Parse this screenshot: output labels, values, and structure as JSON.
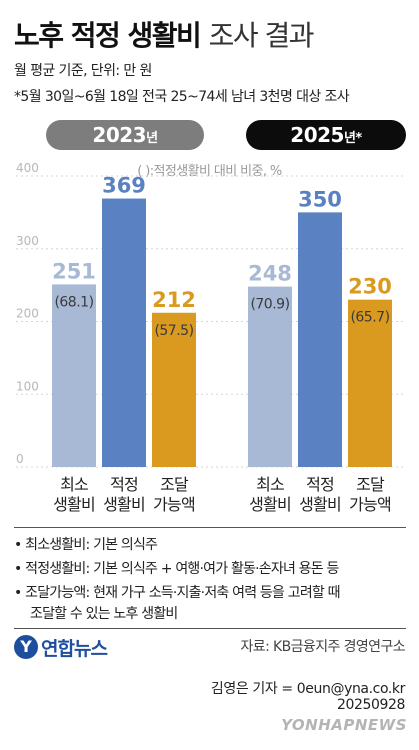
{
  "title": {
    "bold": "노후 적정 생활비",
    "light": "조사 결과"
  },
  "subtitle": "월 평균 기준, 단위: 만 원",
  "survey_note": "*5월 30일~6월 18일 전국 25~74세 남녀 3천명 대상 조사",
  "groups": [
    {
      "year": "2023",
      "suffix": "년"
    },
    {
      "year": "2025",
      "suffix": "년*"
    }
  ],
  "paren_note": "( ):적정생활비 대비 비중, %",
  "colors": {
    "min": "#a8b9d6",
    "adequate": "#5a82c2",
    "capacity": "#d99a1f",
    "axis_text": "#b8b8b8",
    "grid": "#d6d6d6"
  },
  "chart_data": {
    "type": "bar",
    "ylim": [
      0,
      400
    ],
    "yticks": [
      0,
      100,
      200,
      300,
      400
    ],
    "categories": [
      [
        "최소",
        "생활비"
      ],
      [
        "적정",
        "생활비"
      ],
      [
        "조달",
        "가능액"
      ]
    ],
    "groups": [
      {
        "label": "2023년",
        "values": [
          251,
          369,
          212
        ],
        "shares": [
          "(68.1)",
          "",
          "(57.5)"
        ]
      },
      {
        "label": "2025년",
        "values": [
          248,
          350,
          230
        ],
        "shares": [
          "(70.9)",
          "",
          "(65.7)"
        ]
      }
    ]
  },
  "definitions": [
    "• 최소생활비: 기본 의식주",
    "• 적정생활비: 기본 의식주 + 여행·여가 활동·손자녀 용돈 등",
    "• 조달가능액: 현재 가구 소득·지출·저축 여력 등을 고려할 때",
    "조달할 수 있는 노후 생활비"
  ],
  "logo": {
    "mark": "Y",
    "text": "연합뉴스"
  },
  "source": "자료: KB금융지주 경영연구소",
  "byline": "김영은 기자 = 0eun@yna.co.kr",
  "date": "20250928",
  "watermark": "YONHAPNEWS"
}
